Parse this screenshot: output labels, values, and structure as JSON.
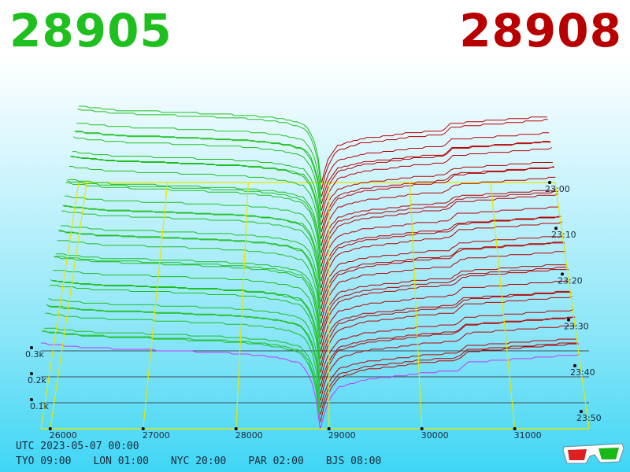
{
  "header": {
    "bid_price": "28905",
    "ask_price": "28908",
    "bid_color": "#1fbf1f",
    "ask_color": "#b80000"
  },
  "footer": {
    "utc_label": "UTC 2023-05-07 00:00",
    "cities": [
      {
        "label": "TYO 09:00"
      },
      {
        "label": "LON 01:00"
      },
      {
        "label": "NYC 20:00"
      },
      {
        "label": "PAR 02:00"
      },
      {
        "label": "BJS 08:00"
      }
    ]
  },
  "chart_data": {
    "type": "area",
    "description_kind": "3d order book depth",
    "x": {
      "ticks": [
        "26000",
        "27000",
        "28000",
        "29000",
        "30000",
        "31000"
      ],
      "range": [
        25900,
        31800
      ]
    },
    "y": {
      "ticks": [
        "0.1k",
        "0.2k",
        "0.3k"
      ],
      "range": [
        0,
        350
      ]
    },
    "z": {
      "ticks": [
        "23:00",
        "23:10",
        "23:20",
        "23:30",
        "23:40",
        "23:50"
      ]
    },
    "bid_price": 28905,
    "ask_price": 28908,
    "bids": {
      "color": "#1fbf1f",
      "snapshots": 36,
      "profile_price": [
        25900,
        26100,
        26400,
        27000,
        27500,
        28000,
        28300,
        28500,
        28700,
        28800,
        28860,
        28905
      ],
      "profile_depth": [
        330,
        322,
        312,
        305,
        298,
        290,
        280,
        270,
        250,
        200,
        120,
        0
      ]
    },
    "asks": {
      "color": "#b80000",
      "snapshots": 36,
      "profile_price": [
        28908,
        28950,
        29000,
        29100,
        29400,
        29800,
        30000,
        30400,
        30500,
        30900,
        31300,
        31700
      ],
      "profile_depth": [
        0,
        60,
        110,
        160,
        190,
        205,
        215,
        225,
        255,
        265,
        275,
        285
      ]
    },
    "accent_colors": {
      "grid": "#e6e600",
      "current": "#cc33ff"
    }
  }
}
